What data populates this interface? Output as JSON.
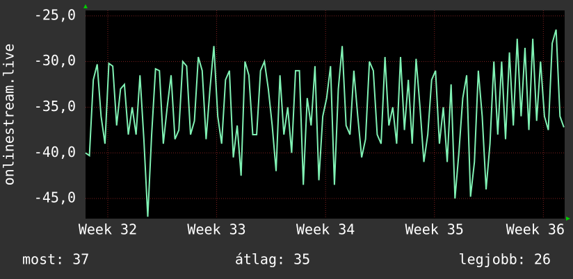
{
  "chart_data": {
    "type": "line",
    "ylabel": "onlinestream.live",
    "x": [
      0,
      0.25,
      0.5,
      0.75,
      1,
      1.25,
      1.5,
      1.75,
      2,
      2.25,
      2.5,
      2.75,
      3,
      3.25,
      3.5,
      3.75,
      4,
      4.25,
      4.5,
      4.75,
      5,
      5.25,
      5.5,
      5.75,
      6,
      6.25,
      6.5,
      6.75,
      7,
      7.25,
      7.5,
      7.75,
      8,
      8.25,
      8.5,
      8.75,
      9,
      9.25,
      9.5,
      9.75,
      10,
      10.25,
      10.5,
      10.75,
      11,
      11.25,
      11.5,
      11.75,
      12,
      12.25,
      12.5,
      12.75,
      13,
      13.25,
      13.5,
      13.75,
      14,
      14.25,
      14.5,
      14.75,
      15,
      15.25,
      15.5,
      15.75,
      16,
      16.25,
      16.5,
      16.75,
      17,
      17.25,
      17.5,
      17.75,
      18,
      18.25,
      18.5,
      18.75,
      19,
      19.25,
      19.5,
      19.75,
      20,
      20.25,
      20.5,
      20.75,
      21,
      21.25,
      21.5,
      21.75,
      22,
      22.25,
      22.5,
      22.75,
      23,
      23.25,
      23.5,
      23.75,
      24,
      24.25,
      24.5,
      24.75,
      25,
      25.25,
      25.5,
      25.75,
      26,
      26.25,
      26.5,
      26.75,
      27,
      27.25,
      27.5,
      27.75,
      28,
      28.25,
      28.5,
      28.75,
      29,
      29.25,
      29.5,
      29.75,
      30,
      30.25,
      30.5,
      30.75
    ],
    "series": [
      {
        "color": "#80f2b4",
        "values": [
          -40.0,
          -40.3,
          -32,
          -30.3,
          -36,
          -39,
          -30.2,
          -30.5,
          -37,
          -33,
          -32.5,
          -38,
          -35,
          -38,
          -31.5,
          -38.5,
          -47,
          -38,
          -30.8,
          -31,
          -39,
          -35,
          -31.5,
          -38.5,
          -37.5,
          -30,
          -30.5,
          -38,
          -36.5,
          -29.5,
          -31,
          -38.5,
          -33,
          -28.3,
          -36,
          -39,
          -32,
          -31,
          -40.5,
          -37,
          -42.5,
          -30,
          -31.5,
          -38,
          -38,
          -31,
          -30,
          -33,
          -37,
          -42,
          -31.5,
          -38,
          -35,
          -40,
          -31,
          -31,
          -43.5,
          -34,
          -37,
          -30.5,
          -43,
          -36,
          -34,
          -30.5,
          -43.5,
          -33,
          -28.3,
          -37,
          -38,
          -31,
          -36,
          -40.5,
          -38.5,
          -30,
          -31,
          -38,
          -39,
          -29.5,
          -37,
          -35,
          -39,
          -29.5,
          -37.5,
          -32,
          -39,
          -29.7,
          -35,
          -41,
          -38,
          -32,
          -31,
          -39,
          -35,
          -41,
          -32.5,
          -45,
          -40,
          -34,
          -31.5,
          -44.8,
          -41,
          -31,
          -36,
          -44,
          -39,
          -30,
          -38,
          -30,
          -38.5,
          -29,
          -37,
          -27.5,
          -36,
          -28.5,
          -37.5,
          -27.5,
          -36.5,
          -30,
          -36,
          -37.5,
          -28,
          -26.5,
          -36,
          -37.2
        ]
      }
    ],
    "xlim": [
      0,
      30.8
    ],
    "xticks": [
      {
        "value": 1.43,
        "label": "Week 32"
      },
      {
        "value": 8.43,
        "label": "Week 33"
      },
      {
        "value": 15.43,
        "label": "Week 34"
      },
      {
        "value": 22.43,
        "label": "Week 35"
      },
      {
        "value": 29.43,
        "label": "Week 36"
      }
    ],
    "ylim": [
      -47.2,
      -24.4
    ],
    "yticks": [
      {
        "value": -25,
        "label": "-25,0"
      },
      {
        "value": -30,
        "label": "-30,0"
      },
      {
        "value": -35,
        "label": "-35,0"
      },
      {
        "value": -40,
        "label": "-40,0"
      },
      {
        "value": -45,
        "label": "-45,0"
      }
    ],
    "grid": true,
    "footer": [
      "most: 37",
      "átlag: 35",
      "legjobb: 26"
    ]
  }
}
